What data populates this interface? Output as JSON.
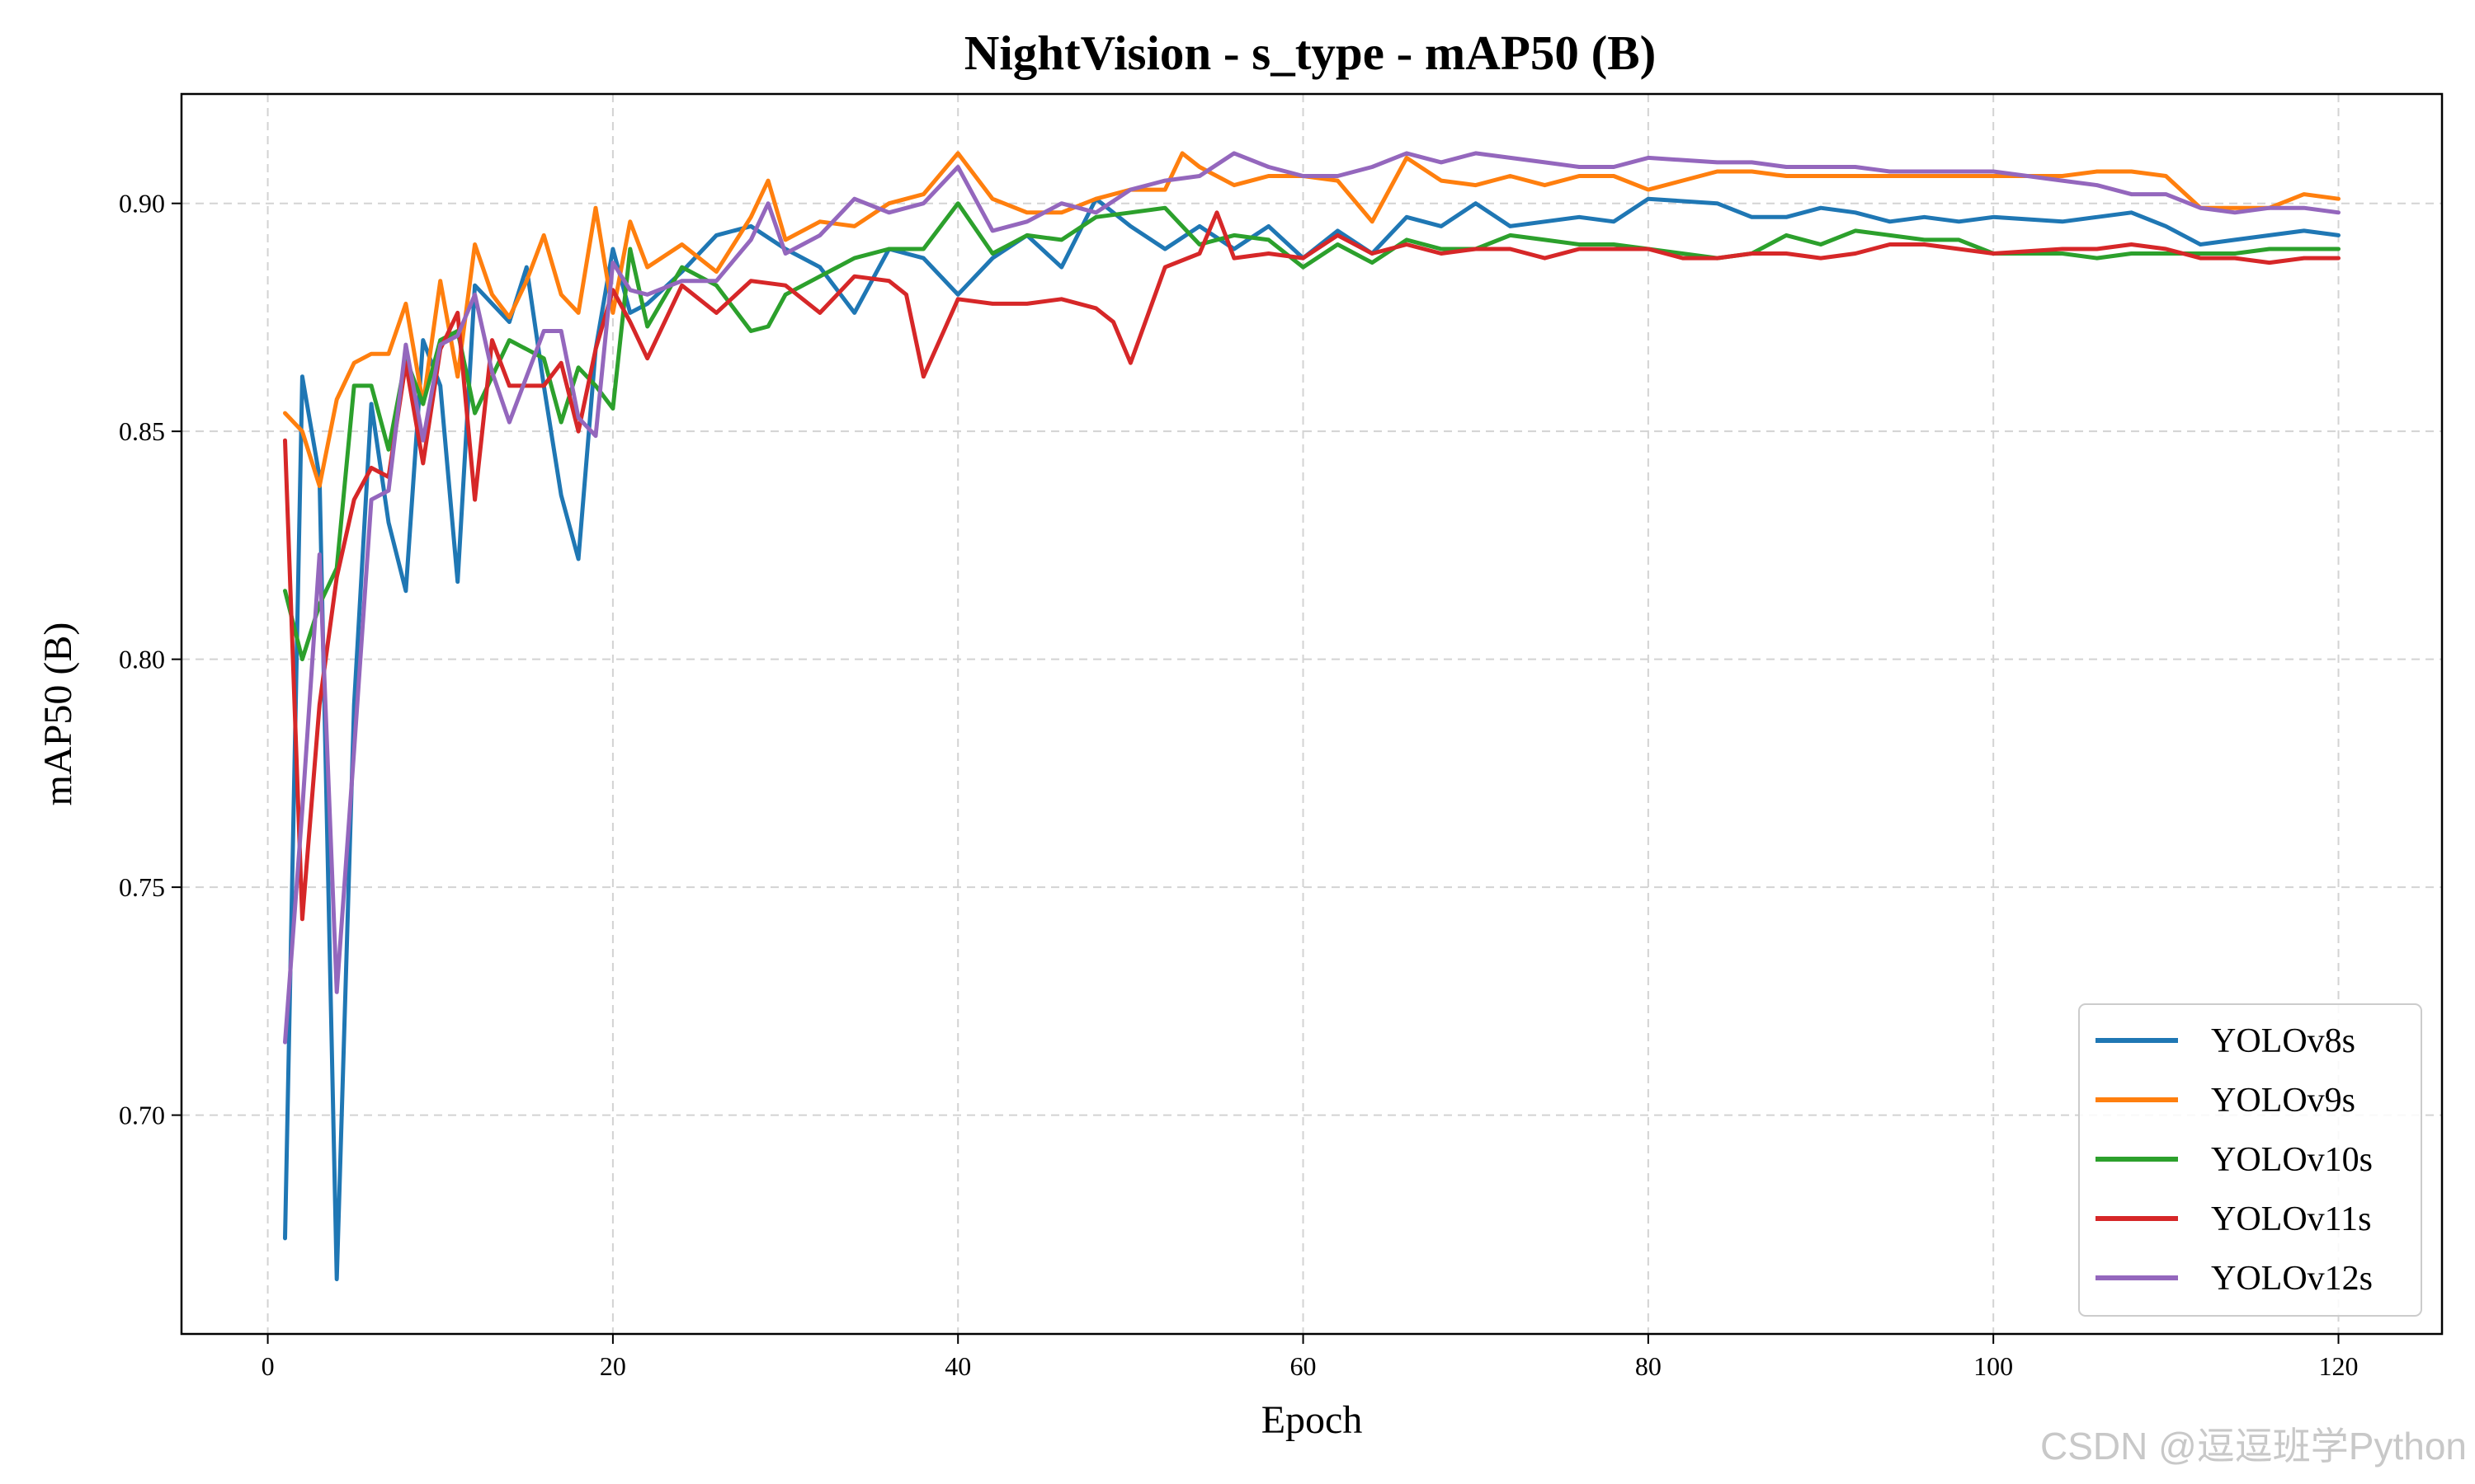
{
  "chart_data": {
    "type": "line",
    "title": "NightVision - s_type - mAP50 (B)",
    "xlabel": "Epoch",
    "ylabel": "mAP50 (B)",
    "xlim": [
      -5,
      126
    ],
    "ylim": [
      0.652,
      0.924
    ],
    "xticks": [
      0,
      20,
      40,
      60,
      80,
      100,
      120
    ],
    "yticks": [
      0.7,
      0.75,
      0.8,
      0.85,
      0.9
    ],
    "grid": true,
    "legend_position": "lower-right",
    "series": [
      {
        "name": "YOLOv8s",
        "color": "#1f77b4",
        "x": [
          1,
          2,
          3,
          4,
          5,
          6,
          7,
          8,
          9,
          10,
          11,
          12,
          13,
          14,
          15,
          16,
          17,
          18,
          19,
          20,
          21,
          22,
          24,
          26,
          28,
          30,
          32,
          34,
          36,
          38,
          40,
          42,
          44,
          46,
          48,
          50,
          52,
          54,
          56,
          58,
          60,
          62,
          64,
          66,
          68,
          70,
          72,
          74,
          76,
          78,
          80,
          84,
          86,
          88,
          90,
          92,
          94,
          96,
          98,
          100,
          104,
          106,
          108,
          110,
          112,
          114,
          116,
          118,
          120
        ],
        "y": [
          0.673,
          0.862,
          0.84,
          0.664,
          0.79,
          0.856,
          0.83,
          0.815,
          0.87,
          0.86,
          0.817,
          0.882,
          0.878,
          0.874,
          0.886,
          0.86,
          0.836,
          0.822,
          0.868,
          0.89,
          0.876,
          0.878,
          0.885,
          0.893,
          0.895,
          0.89,
          0.886,
          0.876,
          0.89,
          0.888,
          0.88,
          0.888,
          0.893,
          0.886,
          0.901,
          0.895,
          0.89,
          0.895,
          0.89,
          0.895,
          0.888,
          0.894,
          0.889,
          0.897,
          0.895,
          0.9,
          0.895,
          0.896,
          0.897,
          0.896,
          0.901,
          0.9,
          0.897,
          0.897,
          0.899,
          0.898,
          0.896,
          0.897,
          0.896,
          0.897,
          0.896,
          0.897,
          0.898,
          0.895,
          0.891,
          0.892,
          0.893,
          0.894,
          0.893
        ]
      },
      {
        "name": "YOLOv9s",
        "color": "#ff7f0e",
        "x": [
          1,
          2,
          3,
          4,
          5,
          6,
          7,
          8,
          9,
          10,
          11,
          12,
          13,
          14,
          15,
          16,
          17,
          18,
          19,
          20,
          21,
          22,
          24,
          26,
          28,
          29,
          30,
          32,
          34,
          36,
          38,
          40,
          42,
          44,
          46,
          48,
          50,
          52,
          53,
          54,
          56,
          58,
          60,
          62,
          64,
          66,
          68,
          70,
          72,
          74,
          76,
          78,
          80,
          84,
          86,
          88,
          90,
          92,
          94,
          96,
          98,
          100,
          104,
          106,
          108,
          110,
          112,
          114,
          116,
          118,
          120
        ],
        "y": [
          0.854,
          0.85,
          0.838,
          0.857,
          0.865,
          0.867,
          0.867,
          0.878,
          0.856,
          0.883,
          0.862,
          0.891,
          0.88,
          0.875,
          0.883,
          0.893,
          0.88,
          0.876,
          0.899,
          0.876,
          0.896,
          0.886,
          0.891,
          0.885,
          0.897,
          0.905,
          0.892,
          0.896,
          0.895,
          0.9,
          0.902,
          0.911,
          0.901,
          0.898,
          0.898,
          0.901,
          0.903,
          0.903,
          0.911,
          0.908,
          0.904,
          0.906,
          0.906,
          0.905,
          0.896,
          0.91,
          0.905,
          0.904,
          0.906,
          0.904,
          0.906,
          0.906,
          0.903,
          0.907,
          0.907,
          0.906,
          0.906,
          0.906,
          0.906,
          0.906,
          0.906,
          0.906,
          0.906,
          0.907,
          0.907,
          0.906,
          0.899,
          0.899,
          0.899,
          0.902,
          0.901
        ]
      },
      {
        "name": "YOLOv10s",
        "color": "#2ca02c",
        "x": [
          1,
          2,
          3,
          4,
          5,
          6,
          7,
          8,
          9,
          10,
          11,
          12,
          13,
          14,
          15,
          16,
          17,
          18,
          19,
          20,
          21,
          22,
          24,
          26,
          28,
          29,
          30,
          32,
          34,
          36,
          38,
          40,
          42,
          44,
          46,
          48,
          50,
          52,
          54,
          56,
          58,
          60,
          62,
          64,
          66,
          68,
          70,
          72,
          74,
          76,
          78,
          80,
          84,
          86,
          88,
          90,
          92,
          94,
          96,
          98,
          100,
          104,
          106,
          108,
          110,
          112,
          114,
          116,
          118,
          120
        ],
        "y": [
          0.815,
          0.8,
          0.812,
          0.82,
          0.86,
          0.86,
          0.846,
          0.866,
          0.856,
          0.87,
          0.872,
          0.854,
          0.862,
          0.87,
          0.868,
          0.866,
          0.852,
          0.864,
          0.86,
          0.855,
          0.89,
          0.873,
          0.886,
          0.882,
          0.872,
          0.873,
          0.88,
          0.884,
          0.888,
          0.89,
          0.89,
          0.9,
          0.889,
          0.893,
          0.892,
          0.897,
          0.898,
          0.899,
          0.891,
          0.893,
          0.892,
          0.886,
          0.891,
          0.887,
          0.892,
          0.89,
          0.89,
          0.893,
          0.892,
          0.891,
          0.891,
          0.89,
          0.888,
          0.889,
          0.893,
          0.891,
          0.894,
          0.893,
          0.892,
          0.892,
          0.889,
          0.889,
          0.888,
          0.889,
          0.889,
          0.889,
          0.889,
          0.89,
          0.89,
          0.89
        ]
      },
      {
        "name": "YOLOv11s",
        "color": "#d62728",
        "x": [
          1,
          2,
          3,
          4,
          5,
          6,
          7,
          8,
          9,
          10,
          11,
          12,
          13,
          14,
          15,
          16,
          17,
          18,
          19,
          20,
          21,
          22,
          24,
          26,
          28,
          30,
          32,
          34,
          36,
          37,
          38,
          40,
          42,
          44,
          46,
          48,
          49,
          50,
          52,
          54,
          55,
          56,
          58,
          60,
          62,
          64,
          66,
          68,
          70,
          72,
          74,
          76,
          78,
          80,
          82,
          84,
          86,
          88,
          90,
          92,
          94,
          96,
          98,
          100,
          104,
          106,
          108,
          110,
          112,
          114,
          116,
          118,
          120
        ],
        "y": [
          0.848,
          0.743,
          0.79,
          0.818,
          0.835,
          0.842,
          0.84,
          0.865,
          0.843,
          0.868,
          0.876,
          0.835,
          0.87,
          0.86,
          0.86,
          0.86,
          0.865,
          0.85,
          0.868,
          0.881,
          0.874,
          0.866,
          0.882,
          0.876,
          0.883,
          0.882,
          0.876,
          0.884,
          0.883,
          0.88,
          0.862,
          0.879,
          0.878,
          0.878,
          0.879,
          0.877,
          0.874,
          0.865,
          0.886,
          0.889,
          0.898,
          0.888,
          0.889,
          0.888,
          0.893,
          0.889,
          0.891,
          0.889,
          0.89,
          0.89,
          0.888,
          0.89,
          0.89,
          0.89,
          0.888,
          0.888,
          0.889,
          0.889,
          0.888,
          0.889,
          0.891,
          0.891,
          0.89,
          0.889,
          0.89,
          0.89,
          0.891,
          0.89,
          0.888,
          0.888,
          0.887,
          0.888,
          0.888
        ]
      },
      {
        "name": "YOLOv12s",
        "color": "#9467bd",
        "x": [
          1,
          2,
          3,
          4,
          5,
          6,
          7,
          8,
          9,
          10,
          11,
          12,
          13,
          14,
          15,
          16,
          17,
          18,
          19,
          20,
          21,
          22,
          24,
          26,
          28,
          29,
          30,
          32,
          34,
          36,
          38,
          40,
          42,
          44,
          46,
          48,
          50,
          52,
          54,
          56,
          58,
          60,
          62,
          64,
          66,
          68,
          70,
          72,
          74,
          76,
          78,
          80,
          84,
          86,
          88,
          90,
          92,
          94,
          96,
          98,
          100,
          104,
          106,
          108,
          110,
          112,
          114,
          116,
          118,
          120
        ],
        "y": [
          0.716,
          0.767,
          0.823,
          0.727,
          0.78,
          0.835,
          0.837,
          0.869,
          0.848,
          0.869,
          0.871,
          0.88,
          0.863,
          0.852,
          0.862,
          0.872,
          0.872,
          0.853,
          0.849,
          0.887,
          0.881,
          0.88,
          0.883,
          0.883,
          0.892,
          0.9,
          0.889,
          0.893,
          0.901,
          0.898,
          0.9,
          0.908,
          0.894,
          0.896,
          0.9,
          0.898,
          0.903,
          0.905,
          0.906,
          0.911,
          0.908,
          0.906,
          0.906,
          0.908,
          0.911,
          0.909,
          0.911,
          0.91,
          0.909,
          0.908,
          0.908,
          0.91,
          0.909,
          0.909,
          0.908,
          0.908,
          0.908,
          0.907,
          0.907,
          0.907,
          0.907,
          0.905,
          0.904,
          0.902,
          0.902,
          0.899,
          0.898,
          0.899,
          0.899,
          0.898
        ]
      }
    ]
  },
  "watermark": "CSDN @逗逗班学Python"
}
